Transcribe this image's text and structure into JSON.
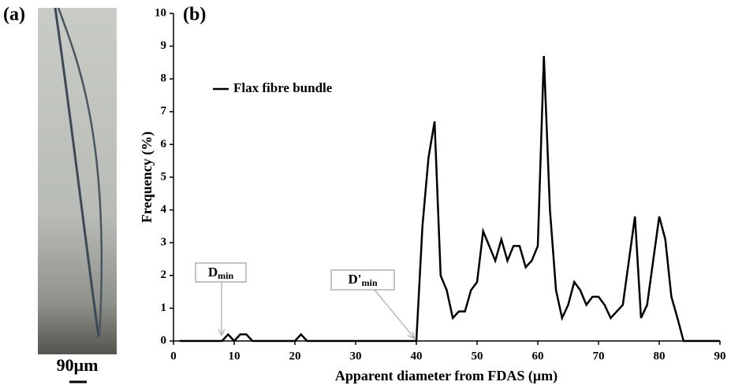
{
  "panel_labels": [
    "(a)",
    "(b)"
  ],
  "scale_bar": "90μm",
  "chart_data": {
    "type": "line",
    "xlabel": "Apparent diameter from FDAS (μm)",
    "ylabel": "Frequency (%)",
    "x": [
      1,
      2,
      3,
      4,
      5,
      6,
      7,
      8,
      9,
      10,
      11,
      12,
      13,
      14,
      15,
      16,
      17,
      18,
      19,
      20,
      21,
      22,
      23,
      24,
      25,
      26,
      27,
      28,
      29,
      30,
      31,
      32,
      33,
      34,
      35,
      36,
      37,
      38,
      39,
      40,
      41,
      42,
      43,
      44,
      45,
      46,
      47,
      48,
      49,
      50,
      51,
      52,
      53,
      54,
      55,
      56,
      57,
      58,
      59,
      60,
      61,
      62,
      63,
      64,
      65,
      66,
      67,
      68,
      69,
      70,
      71,
      72,
      73,
      74,
      75,
      76,
      77,
      78,
      79,
      80,
      81,
      82,
      83,
      84,
      85,
      86,
      87,
      88,
      89,
      90
    ],
    "series": [
      {
        "name": "Flax fibre bundle",
        "color": "#000000",
        "values": [
          0,
          0,
          0,
          0,
          0,
          0,
          0,
          0,
          0.2,
          0,
          0.2,
          0.2,
          0,
          0,
          0,
          0,
          0,
          0,
          0,
          0,
          0.2,
          0,
          0,
          0,
          0,
          0,
          0,
          0,
          0,
          0,
          0,
          0,
          0,
          0,
          0,
          0,
          0,
          0,
          0,
          0,
          3.5,
          5.6,
          6.7,
          2.0,
          1.55,
          0.7,
          0.9,
          0.9,
          1.55,
          1.8,
          3.35,
          2.9,
          2.45,
          3.1,
          2.45,
          2.9,
          2.9,
          2.25,
          2.45,
          2.9,
          8.7,
          4.0,
          1.55,
          0.7,
          1.1,
          1.8,
          1.55,
          1.1,
          1.35,
          1.35,
          1.1,
          0.7,
          0.9,
          1.1,
          2.45,
          3.8,
          0.7,
          1.1,
          2.45,
          3.8,
          3.1,
          1.35,
          0.7,
          0,
          0,
          0,
          0,
          0,
          0,
          0
        ]
      }
    ],
    "xlim": [
      0,
      90
    ],
    "xticks": [
      0,
      10,
      20,
      30,
      40,
      50,
      60,
      70,
      80,
      90
    ],
    "ylim": [
      0,
      10
    ],
    "yticks": [
      0,
      1,
      2,
      3,
      4,
      5,
      6,
      7,
      8,
      9,
      10
    ],
    "legend": "upper left",
    "annotations": [
      {
        "text": "D",
        "sub": "min"
      },
      {
        "text": "D'",
        "sub": "min"
      }
    ]
  }
}
